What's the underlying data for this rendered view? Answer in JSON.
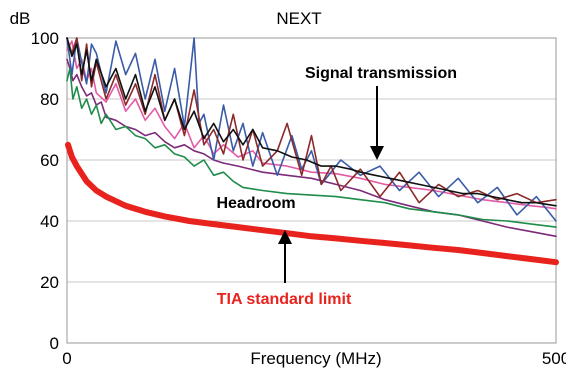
{
  "chart_data": {
    "type": "line",
    "title": "NEXT",
    "ylabel": "dB",
    "xlabel": "Frequency (MHz)",
    "xlim": [
      0,
      500
    ],
    "ylim": [
      0,
      100
    ],
    "x_ticks": [
      "0",
      "500"
    ],
    "y_ticks": [
      "0",
      "20",
      "40",
      "60",
      "80",
      "100"
    ],
    "grid": true,
    "legend": "none",
    "annotations": {
      "signal": "Signal transmission",
      "headroom": "Headroom",
      "limit": "TIA standard limit"
    },
    "colors": {
      "limit": "#e8231e",
      "annotation_limit": "#e8231e",
      "annotation_text": "#000000"
    },
    "series": [
      {
        "color": "#e8231e",
        "role": "limit",
        "x": [
          1,
          5,
          10,
          20,
          30,
          40,
          50,
          60,
          80,
          100,
          125,
          150,
          175,
          200,
          225,
          250,
          275,
          300,
          325,
          350,
          375,
          400,
          425,
          450,
          475,
          500
        ],
        "y": [
          65,
          61,
          58,
          53,
          50,
          48,
          46.5,
          45,
          43,
          41.5,
          40,
          39,
          38,
          37,
          36,
          35,
          34.3,
          33.5,
          32.8,
          32,
          31.2,
          30.5,
          29.5,
          28.5,
          27.5,
          26.5
        ]
      },
      {
        "color": "#7d2a7a",
        "x": [
          0,
          3,
          6,
          10,
          15,
          20,
          25,
          30,
          35,
          40,
          50,
          60,
          70,
          80,
          90,
          100,
          110,
          120,
          130,
          140,
          150,
          160,
          175,
          200,
          225,
          250,
          275,
          300,
          325,
          350,
          375,
          400,
          425,
          450,
          475,
          500
        ],
        "y": [
          93,
          90,
          86,
          88,
          84,
          81,
          82,
          78,
          79,
          74,
          73,
          71,
          70,
          68,
          69,
          66,
          64,
          65,
          63,
          62,
          60,
          59,
          58,
          56,
          55,
          54,
          52,
          50,
          47,
          45,
          43,
          42,
          40,
          38,
          36.5,
          35
        ]
      },
      {
        "color": "#1e8c4a",
        "x": [
          0,
          3,
          6,
          10,
          15,
          20,
          25,
          30,
          35,
          40,
          50,
          60,
          70,
          80,
          90,
          100,
          110,
          120,
          130,
          140,
          150,
          160,
          170,
          180,
          200,
          225,
          250,
          275,
          300,
          325,
          350,
          375,
          400,
          425,
          450,
          475,
          500
        ],
        "y": [
          86,
          90,
          80,
          84,
          77,
          80,
          75,
          78,
          72,
          75,
          70,
          71,
          68,
          67,
          64,
          65,
          62,
          61,
          58,
          60,
          55,
          56,
          53,
          51,
          50,
          49,
          48.5,
          48,
          47,
          46,
          44,
          43,
          42,
          40.5,
          40,
          39,
          38
        ]
      },
      {
        "color": "#e35aa6",
        "x": [
          0,
          5,
          10,
          15,
          20,
          25,
          30,
          40,
          50,
          60,
          70,
          80,
          90,
          100,
          110,
          120,
          130,
          140,
          150,
          160,
          175,
          190,
          200,
          225,
          250,
          275,
          300,
          325,
          350,
          375,
          400,
          425,
          450,
          475,
          490,
          500
        ],
        "y": [
          96,
          99,
          90,
          93,
          86,
          90,
          82,
          79,
          85,
          76,
          80,
          73,
          77,
          71,
          67,
          72,
          64,
          68,
          62,
          65,
          61,
          63,
          59,
          58,
          56,
          55.5,
          54,
          52,
          51,
          50,
          48.5,
          47,
          46,
          45,
          44.5,
          44
        ]
      },
      {
        "color": "#3a5ca8",
        "x": [
          0,
          5,
          10,
          15,
          20,
          25,
          30,
          40,
          50,
          60,
          70,
          80,
          90,
          100,
          110,
          120,
          130,
          135,
          140,
          150,
          160,
          170,
          180,
          190,
          200,
          215,
          230,
          240,
          250,
          260,
          280,
          300,
          320,
          340,
          360,
          380,
          400,
          420,
          440,
          460,
          480,
          500
        ],
        "y": [
          100,
          88,
          100,
          92,
          85,
          98,
          95,
          82,
          99,
          88,
          95,
          80,
          93,
          76,
          90,
          71,
          100,
          72,
          75,
          60,
          78,
          63,
          72,
          58,
          69,
          55,
          68,
          57,
          63,
          52,
          60,
          55,
          58,
          50,
          56,
          48,
          54,
          46,
          51,
          42,
          48,
          40
        ]
      },
      {
        "color": "#8b2a2a",
        "x": [
          0,
          5,
          10,
          15,
          20,
          25,
          30,
          40,
          50,
          60,
          70,
          80,
          90,
          100,
          110,
          120,
          130,
          140,
          150,
          160,
          170,
          180,
          190,
          200,
          215,
          225,
          240,
          250,
          260,
          270,
          280,
          300,
          320,
          340,
          360,
          380,
          400,
          420,
          440,
          460,
          480,
          500
        ],
        "y": [
          100,
          95,
          100,
          86,
          98,
          84,
          92,
          80,
          88,
          78,
          85,
          75,
          88,
          73,
          80,
          68,
          83,
          65,
          70,
          62,
          75,
          60,
          70,
          58,
          63,
          72,
          55,
          68,
          52,
          58,
          50,
          57,
          48,
          56,
          46,
          52,
          48,
          50,
          47,
          49,
          46,
          47
        ]
      },
      {
        "color": "#111111",
        "x": [
          0,
          5,
          10,
          15,
          20,
          25,
          30,
          40,
          50,
          60,
          70,
          80,
          90,
          100,
          110,
          120,
          130,
          140,
          150,
          160,
          170,
          180,
          190,
          200,
          215,
          230,
          245,
          260,
          275,
          290,
          300,
          315,
          330,
          345,
          360,
          375,
          390,
          405,
          420,
          435,
          450,
          465,
          480,
          500
        ],
        "y": [
          100,
          94,
          98,
          88,
          96,
          86,
          93,
          84,
          90,
          80,
          88,
          76,
          84,
          73,
          80,
          70,
          76,
          67,
          72,
          66,
          70,
          65,
          70,
          64,
          63,
          61,
          60,
          58,
          58,
          57,
          56,
          55,
          54,
          53,
          52,
          51,
          50,
          49,
          49,
          48,
          47,
          46,
          46,
          45
        ]
      }
    ]
  }
}
